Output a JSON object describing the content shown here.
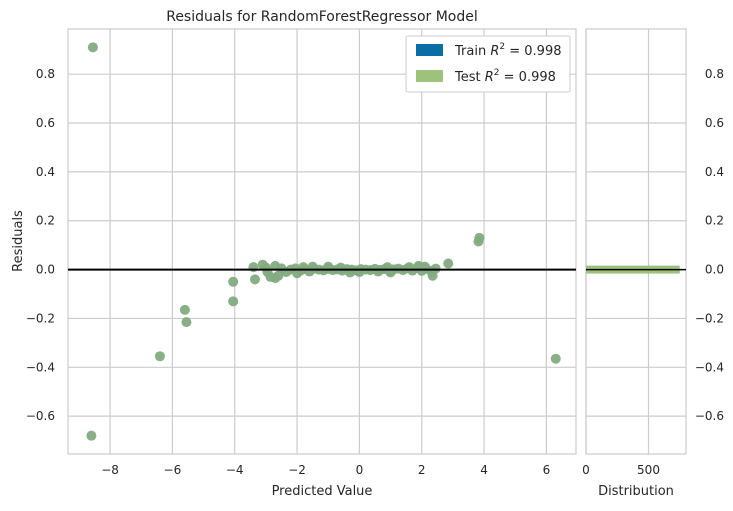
{
  "chart_data": {
    "type": "scatter",
    "title": "Residuals for RandomForestRegressor Model",
    "main": {
      "xlabel": "Predicted Value",
      "ylabel": "Residuals",
      "xlim": [
        -9.35,
        6.95
      ],
      "ylim": [
        -0.755,
        0.985
      ],
      "xticks": [
        -8,
        -6,
        -4,
        -2,
        0,
        2,
        4,
        6
      ],
      "xtick_labels": [
        "−8",
        "−6",
        "−4",
        "−2",
        "0",
        "2",
        "4",
        "6"
      ],
      "yticks": [
        -0.6,
        -0.4,
        -0.2,
        0.0,
        0.2,
        0.4,
        0.6,
        0.8
      ],
      "ytick_labels": [
        "−0.6",
        "−0.4",
        "−0.2",
        "0.0",
        "0.2",
        "0.4",
        "0.6",
        "0.8"
      ],
      "grid": true,
      "zero_line": 0
    },
    "distribution": {
      "xlabel": "Distribution",
      "xlim": [
        0,
        800
      ],
      "xticks": [
        0,
        500
      ],
      "xtick_labels": [
        "0",
        "500"
      ],
      "bar_center": 0.0,
      "bar_count": 750,
      "bar_color": "#9dc27b",
      "ytick_side": "right"
    },
    "legend": {
      "placement": "top-right",
      "entries": [
        {
          "label_prefix": "Train ",
          "label_r2": "R",
          "label_sup": "2",
          "label_suffix": " = 0.998",
          "color": "#0a6ea4"
        },
        {
          "label_prefix": "Test ",
          "label_r2": "R",
          "label_sup": "2",
          "label_suffix": " = 0.998",
          "color": "#9dc27b"
        }
      ]
    },
    "series": [
      {
        "name": "Test",
        "color": "#82ab7f",
        "points": [
          [
            -8.55,
            0.91
          ],
          [
            -8.6,
            -0.68
          ],
          [
            -6.4,
            -0.355
          ],
          [
            -5.6,
            -0.165
          ],
          [
            -5.55,
            -0.215
          ],
          [
            -4.05,
            -0.05
          ],
          [
            -4.05,
            -0.13
          ],
          [
            -3.4,
            0.01
          ],
          [
            -3.35,
            -0.04
          ],
          [
            -3.1,
            0.02
          ],
          [
            -2.95,
            -0.01
          ],
          [
            -2.85,
            -0.03
          ],
          [
            -2.7,
            0.015
          ],
          [
            -2.6,
            -0.025
          ],
          [
            -2.5,
            0.005
          ],
          [
            -2.35,
            -0.01
          ],
          [
            -2.2,
            0.0
          ],
          [
            -2.05,
            0.005
          ],
          [
            -1.9,
            -0.005
          ],
          [
            -1.75,
            0.002
          ],
          [
            -1.6,
            -0.008
          ],
          [
            -1.45,
            0.004
          ],
          [
            -1.3,
            0.0
          ],
          [
            -1.15,
            -0.003
          ],
          [
            -1.0,
            0.003
          ],
          [
            -0.85,
            -0.002
          ],
          [
            -0.7,
            0.001
          ],
          [
            -0.55,
            -0.004
          ],
          [
            -0.4,
            0.002
          ],
          [
            -0.25,
            0.0
          ],
          [
            -0.1,
            -0.003
          ],
          [
            0.05,
            0.002
          ],
          [
            0.2,
            0.0
          ],
          [
            0.35,
            -0.002
          ],
          [
            0.5,
            0.003
          ],
          [
            0.65,
            -0.001
          ],
          [
            0.8,
            0.002
          ],
          [
            0.95,
            -0.003
          ],
          [
            1.1,
            0.001
          ],
          [
            1.25,
            0.004
          ],
          [
            1.4,
            -0.002
          ],
          [
            1.55,
            0.005
          ],
          [
            1.7,
            -0.004
          ],
          [
            1.85,
            0.006
          ],
          [
            2.0,
            -0.005
          ],
          [
            2.15,
            0.003
          ],
          [
            2.3,
            -0.006
          ],
          [
            2.35,
            -0.025
          ],
          [
            2.45,
            0.004
          ],
          [
            2.85,
            0.025
          ],
          [
            3.85,
            0.13
          ],
          [
            3.82,
            0.115
          ],
          [
            6.3,
            -0.365
          ],
          [
            -2.7,
            -0.035
          ],
          [
            -1.5,
            0.012
          ],
          [
            -0.3,
            -0.012
          ],
          [
            0.9,
            0.01
          ],
          [
            1.9,
            0.015
          ],
          [
            -2.0,
            -0.015
          ],
          [
            -1.0,
            0.012
          ],
          [
            0.0,
            -0.01
          ],
          [
            1.0,
            -0.012
          ],
          [
            1.6,
            0.01
          ],
          [
            -3.0,
            0.008
          ],
          [
            2.1,
            0.012
          ],
          [
            -1.8,
            0.01
          ],
          [
            -0.6,
            0.008
          ],
          [
            0.6,
            -0.008
          ]
        ]
      }
    ]
  }
}
